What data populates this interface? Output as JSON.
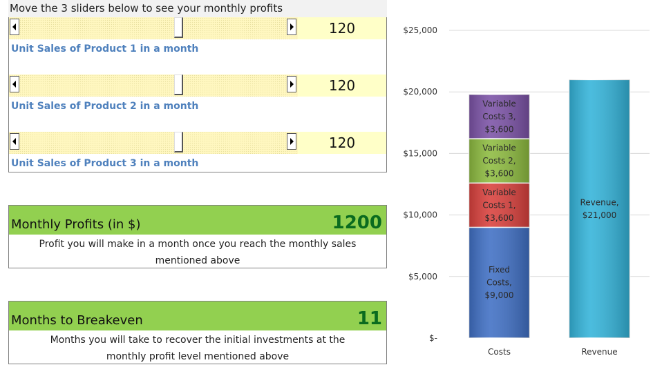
{
  "instruction": "Move the 3 sliders below to see your monthly profits",
  "sliders": [
    {
      "value": "120",
      "label": "Unit Sales of Product 1 in a month",
      "position": 0.6
    },
    {
      "value": "120",
      "label": "Unit Sales of Product 2 in a month",
      "position": 0.6
    },
    {
      "value": "120",
      "label": "Unit Sales of Product 3 in a month",
      "position": 0.6
    }
  ],
  "profits": {
    "label": "Monthly Profits (in $)",
    "value": "1200",
    "description": "Profit you will make in a month once you reach the monthly sales mentioned above"
  },
  "breakeven": {
    "label": "Months to Breakeven",
    "value": "11",
    "description": "Months you will take to recover the initial investments at the monthly profit level mentioned above"
  },
  "colors": {
    "slider_bg": "#fff7c0",
    "value_bg": "#ffffc8",
    "result_head": "#92d050",
    "result_value": "#0a6b1f",
    "unit_label": "#4f81bd"
  },
  "chart_data": {
    "type": "bar",
    "stacked": true,
    "categories": [
      "Costs",
      "Revenue"
    ],
    "ylim": [
      0,
      25000
    ],
    "yticks": [
      0,
      5000,
      10000,
      15000,
      20000,
      25000
    ],
    "ytick_labels": [
      "$-",
      "$5,000",
      "$10,000",
      "$15,000",
      "$20,000",
      "$25,000"
    ],
    "grid": true,
    "legend": "none",
    "series": [
      {
        "name": "Fixed Costs",
        "values": [
          9000,
          0
        ],
        "color": "#3f6fc4",
        "labels": [
          [
            "Fixed",
            "Costs,",
            "$9,000"
          ],
          null
        ]
      },
      {
        "name": "Variable Costs 1",
        "values": [
          3600,
          0
        ],
        "color": "#d9403c",
        "labels": [
          [
            "Variable",
            "Costs 1,",
            "$3,600"
          ],
          null
        ]
      },
      {
        "name": "Variable Costs 2",
        "values": [
          3600,
          0
        ],
        "color": "#8dbb3f",
        "labels": [
          [
            "Variable",
            "Costs 2,",
            "$3,600"
          ],
          null
        ]
      },
      {
        "name": "Variable Costs 3",
        "values": [
          3600,
          0
        ],
        "color": "#7b52a6",
        "labels": [
          [
            "Variable",
            "Costs 3,",
            "$3,600"
          ],
          null
        ]
      },
      {
        "name": "Revenue",
        "values": [
          0,
          21000
        ],
        "color": "#33b3d9",
        "labels": [
          null,
          [
            "Revenue,",
            "$21,000"
          ]
        ]
      }
    ]
  }
}
